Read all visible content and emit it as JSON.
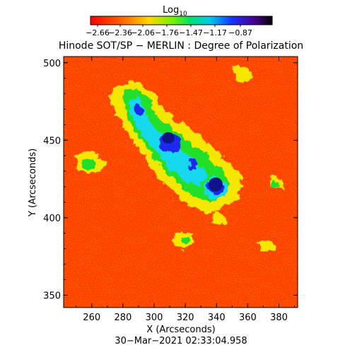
{
  "colorbar": {
    "label_main": "Log",
    "label_sub": "10",
    "tick_labels": [
      "−2.66",
      "−2.36",
      "−2.06",
      "−1.76",
      "−1.47",
      "−1.17",
      "−0.87"
    ]
  },
  "plot": {
    "title": "Hinode SOT/SP − MERLIN : Degree of Polarization",
    "xlabel": "X (Arcseconds)",
    "ylabel": "Y (Arcseconds)",
    "x_tick_labels": [
      "260",
      "280",
      "300",
      "320",
      "340",
      "360",
      "380"
    ],
    "y_tick_labels": [
      "350",
      "400",
      "450",
      "500"
    ],
    "timestamp": "30−Mar−2021 02:33:04.958"
  },
  "colors": {
    "background_red": "#ff3a00",
    "orange": "#ff8c00",
    "yellow": "#f5f000",
    "green": "#22e02a",
    "cyan": "#16d8ee",
    "blue": "#1a2af0",
    "navy": "#10128a"
  },
  "map": {
    "x_range_arcsec": [
      242,
      392
    ],
    "y_range_arcsec": [
      342,
      504
    ],
    "colorscale_range_log10": [
      -2.66,
      -0.87
    ],
    "features": [
      {
        "name": "sunspot-east",
        "x": 309,
        "y": 450
      },
      {
        "name": "sunspot-west",
        "x": 340,
        "y": 420
      }
    ]
  }
}
